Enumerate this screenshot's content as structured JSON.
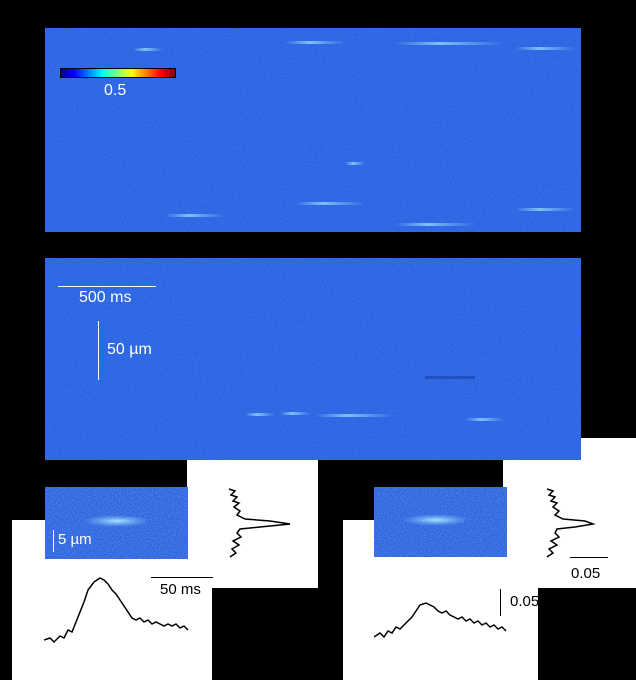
{
  "colorbar": {
    "value_label": "0.5"
  },
  "scalebars": {
    "time_top": "500 ms",
    "space_top": "50 µm",
    "space_small": "5 µm",
    "time_small": "50 ms",
    "amp_right": "0.05",
    "amp_right_vertical": "0.05"
  },
  "colors": {
    "image_blue": "#2a5fe0",
    "spark_cyan": "#8fe0ff",
    "trace": "#000000"
  }
}
